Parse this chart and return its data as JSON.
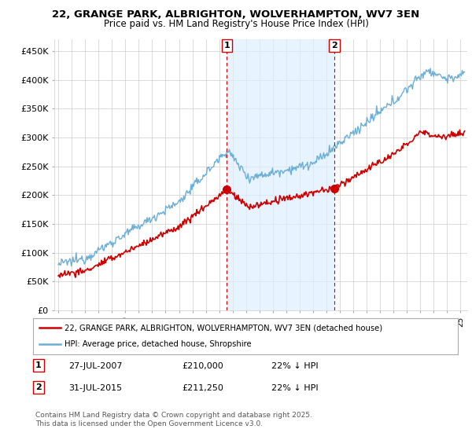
{
  "title_line1": "22, GRANGE PARK, ALBRIGHTON, WOLVERHAMPTON, WV7 3EN",
  "title_line2": "Price paid vs. HM Land Registry's House Price Index (HPI)",
  "ylabel_ticks": [
    "£0",
    "£50K",
    "£100K",
    "£150K",
    "£200K",
    "£250K",
    "£300K",
    "£350K",
    "£400K",
    "£450K"
  ],
  "ylabel_values": [
    0,
    50000,
    100000,
    150000,
    200000,
    250000,
    300000,
    350000,
    400000,
    450000
  ],
  "ylim": [
    0,
    470000
  ],
  "xlim_start": 1994.7,
  "xlim_end": 2025.5,
  "hpi_color": "#6baed6",
  "price_color": "#cc0000",
  "vline_color": "#cc0000",
  "shade_color": "#ddeeff",
  "marker1_x": 2007.57,
  "marker1_y": 210000,
  "marker1_label": "1",
  "marker2_x": 2015.58,
  "marker2_y": 211250,
  "marker2_label": "2",
  "legend_line1": "22, GRANGE PARK, ALBRIGHTON, WOLVERHAMPTON, WV7 3EN (detached house)",
  "legend_line2": "HPI: Average price, detached house, Shropshire",
  "note1_label": "1",
  "note1_date": "27-JUL-2007",
  "note1_price": "£210,000",
  "note1_hpi": "22% ↓ HPI",
  "note2_label": "2",
  "note2_date": "31-JUL-2015",
  "note2_price": "£211,250",
  "note2_hpi": "22% ↓ HPI",
  "footnote": "Contains HM Land Registry data © Crown copyright and database right 2025.\nThis data is licensed under the Open Government Licence v3.0.",
  "bg_color": "#ffffff",
  "plot_bg_color": "#ffffff",
  "grid_color": "#cccccc"
}
